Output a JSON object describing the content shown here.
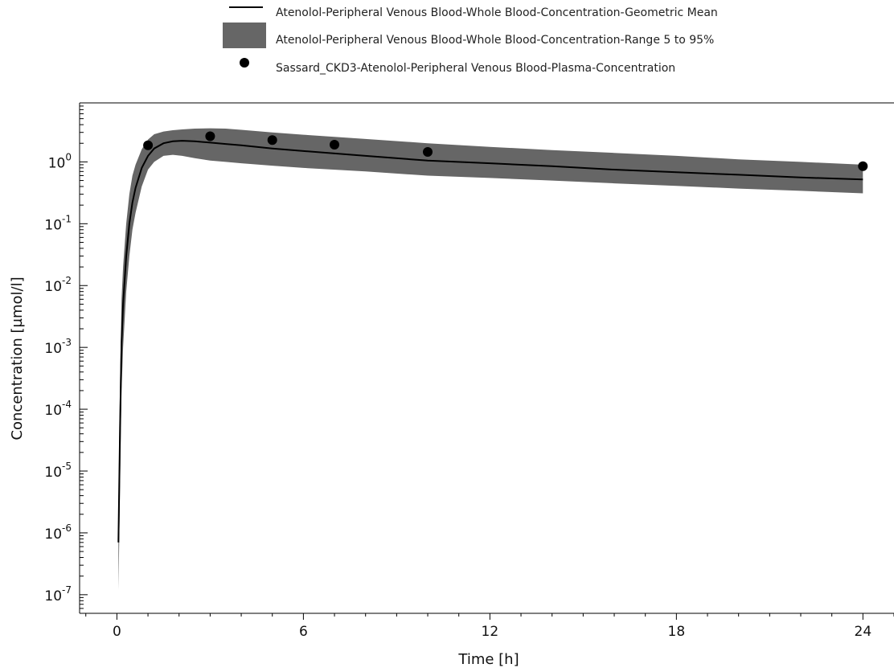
{
  "chart_data": {
    "type": "line",
    "xlabel": "Time [h]",
    "ylabel": "Concentration [µmol/l]",
    "y_scale": "log",
    "xlim": [
      -1.2,
      25
    ],
    "ylim": [
      5e-08,
      9
    ],
    "x_ticks": [
      0,
      6,
      12,
      18,
      24
    ],
    "x_tick_labels": [
      "0",
      "6",
      "12",
      "18",
      "24"
    ],
    "y_ticks": [
      {
        "value": 1,
        "base": "10",
        "exp": "0"
      },
      {
        "value": 0.1,
        "base": "10",
        "exp": "-1"
      },
      {
        "value": 0.01,
        "base": "10",
        "exp": "-2"
      },
      {
        "value": 0.001,
        "base": "10",
        "exp": "-3"
      },
      {
        "value": 0.0001,
        "base": "10",
        "exp": "-4"
      },
      {
        "value": 1e-05,
        "base": "10",
        "exp": "-5"
      },
      {
        "value": 1e-06,
        "base": "10",
        "exp": "-6"
      },
      {
        "value": 1e-07,
        "base": "10",
        "exp": "-7"
      }
    ],
    "legend_position": "top",
    "colors": {
      "line": "#000000",
      "band": "#666666",
      "points": "#000000"
    },
    "series": [
      {
        "name": "Atenolol-Peripheral Venous Blood-Whole Blood-Concentration-Geometric Mean",
        "kind": "line",
        "x": [
          0.05,
          0.1,
          0.15,
          0.2,
          0.3,
          0.4,
          0.5,
          0.6,
          0.8,
          1.0,
          1.2,
          1.5,
          1.8,
          2.1,
          2.5,
          3.0,
          3.5,
          4,
          5,
          6,
          8,
          10,
          12,
          14,
          16,
          18,
          20,
          22,
          24
        ],
        "y": [
          7e-07,
          5e-05,
          0.0012,
          0.005,
          0.03,
          0.1,
          0.22,
          0.38,
          0.8,
          1.25,
          1.65,
          2.0,
          2.15,
          2.2,
          2.15,
          2.05,
          1.95,
          1.85,
          1.65,
          1.5,
          1.25,
          1.05,
          0.95,
          0.85,
          0.75,
          0.68,
          0.62,
          0.56,
          0.52
        ]
      },
      {
        "name": "Atenolol-Peripheral Venous Blood-Whole Blood-Concentration-Range 5 to 95%",
        "kind": "band",
        "x": [
          0.05,
          0.1,
          0.15,
          0.2,
          0.3,
          0.4,
          0.5,
          0.6,
          0.8,
          1.0,
          1.2,
          1.5,
          1.8,
          2.1,
          2.5,
          3.0,
          3.5,
          4,
          5,
          6,
          8,
          10,
          12,
          14,
          16,
          18,
          20,
          22,
          24
        ],
        "lower": [
          1.2e-07,
          5e-06,
          0.0002,
          0.001,
          0.008,
          0.03,
          0.08,
          0.15,
          0.4,
          0.75,
          1.0,
          1.25,
          1.3,
          1.25,
          1.15,
          1.05,
          1.0,
          0.95,
          0.87,
          0.8,
          0.7,
          0.6,
          0.55,
          0.5,
          0.45,
          0.41,
          0.37,
          0.34,
          0.31
        ],
        "upper": [
          3e-06,
          0.0003,
          0.006,
          0.02,
          0.1,
          0.3,
          0.6,
          0.9,
          1.6,
          2.3,
          2.8,
          3.1,
          3.25,
          3.35,
          3.45,
          3.5,
          3.45,
          3.3,
          3.0,
          2.75,
          2.35,
          2.0,
          1.75,
          1.55,
          1.4,
          1.25,
          1.1,
          1.0,
          0.9
        ]
      },
      {
        "name": "Sassard_CKD3-Atenolol-Peripheral Venous Blood-Plasma-Concentration",
        "kind": "scatter",
        "x": [
          1,
          3,
          5,
          7,
          10,
          24
        ],
        "y": [
          1.85,
          2.6,
          2.25,
          1.9,
          1.45,
          0.85
        ]
      }
    ]
  }
}
